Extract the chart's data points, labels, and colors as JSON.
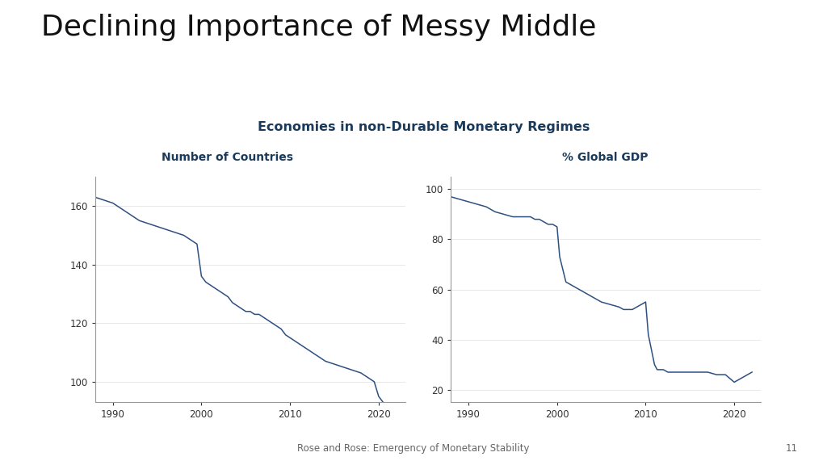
{
  "title": "Declining Importance of Messy Middle",
  "super_title": "Economies in non-Durable Monetary Regimes",
  "left_subtitle": "Number of Countries",
  "right_subtitle": "% Global GDP",
  "footer": "Rose and Rose: Emergency of Monetary Stability",
  "page_number": "11",
  "panel_bg": "#dce8f0",
  "plot_bg": "#ffffff",
  "line_color": "#2e5080",
  "left_data": {
    "x": [
      1988,
      1989,
      1990,
      1991,
      1992,
      1993,
      1994,
      1995,
      1996,
      1997,
      1998,
      1998.5,
      1999,
      1999.5,
      2000,
      2000.5,
      2001,
      2002,
      2003,
      2003.5,
      2004,
      2004.5,
      2005,
      2005.5,
      2006,
      2006.5,
      2007,
      2007.5,
      2008,
      2008.5,
      2009,
      2009.5,
      2010,
      2010.5,
      2011,
      2011.5,
      2012,
      2012.5,
      2013,
      2013.5,
      2014,
      2015,
      2016,
      2017,
      2018,
      2018.5,
      2019,
      2019.5,
      2020,
      2020.5,
      2021,
      2022
    ],
    "y": [
      163,
      162,
      161,
      159,
      157,
      155,
      154,
      153,
      152,
      151,
      150,
      149,
      148,
      147,
      136,
      134,
      133,
      131,
      129,
      127,
      126,
      125,
      124,
      124,
      123,
      123,
      122,
      121,
      120,
      119,
      118,
      116,
      115,
      114,
      113,
      112,
      111,
      110,
      109,
      108,
      107,
      106,
      105,
      104,
      103,
      102,
      101,
      100,
      95,
      93,
      92,
      91
    ],
    "ylim": [
      93,
      170
    ],
    "yticks": [
      100,
      120,
      140,
      160
    ],
    "xlim": [
      1988,
      2023
    ],
    "xticks": [
      1990,
      2000,
      2010,
      2020
    ]
  },
  "right_data": {
    "x": [
      1988,
      1989,
      1990,
      1991,
      1992,
      1993,
      1994,
      1995,
      1996,
      1997,
      1997.5,
      1998,
      1998.5,
      1999,
      1999.5,
      2000,
      2000.3,
      2001,
      2001.5,
      2002,
      2002.5,
      2003,
      2004,
      2005,
      2006,
      2007,
      2007.5,
      2008,
      2008.5,
      2009,
      2009.5,
      2010,
      2010.3,
      2011,
      2011.3,
      2012,
      2012.5,
      2013,
      2014,
      2015,
      2016,
      2017,
      2018,
      2019,
      2020,
      2021,
      2022
    ],
    "y": [
      97,
      96,
      95,
      94,
      93,
      91,
      90,
      89,
      89,
      89,
      88,
      88,
      87,
      86,
      86,
      85,
      73,
      63,
      62,
      61,
      60,
      59,
      57,
      55,
      54,
      53,
      52,
      52,
      52,
      53,
      54,
      55,
      42,
      30,
      28,
      28,
      27,
      27,
      27,
      27,
      27,
      27,
      26,
      26,
      23,
      25,
      27
    ],
    "ylim": [
      15,
      105
    ],
    "yticks": [
      20,
      40,
      60,
      80,
      100
    ],
    "xlim": [
      1988,
      2023
    ],
    "xticks": [
      1990,
      2000,
      2010,
      2020
    ]
  }
}
